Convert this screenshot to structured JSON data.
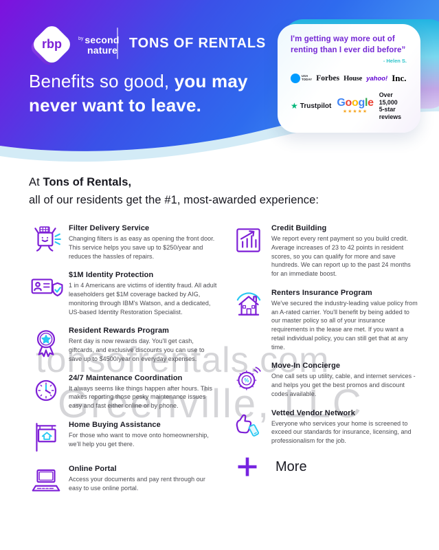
{
  "colors": {
    "accent_purple": "#7b1fd6",
    "accent_cyan": "#29c8f2",
    "header_gradient_start": "#7e11dd",
    "header_gradient_mid": "#3a51e8",
    "header_gradient_end": "#4398f2",
    "trustpilot_green": "#00b67a",
    "star_gold": "#f6a623",
    "quote_purple": "#7427d4",
    "attribution_teal": "#2fc4cb"
  },
  "header": {
    "logo": {
      "rbp": "rbp",
      "by": "by",
      "brand_word1": "second",
      "brand_word2": "nature"
    },
    "title": "TONS OF RENTALS",
    "headline": {
      "regular": "Benefits so good, ",
      "bold1": "you may",
      "bold2": "never want to leave."
    }
  },
  "testimonial_card": {
    "quote_line1": "I'm getting way more out of",
    "quote_line2": "renting than I ever did before”",
    "attribution": "- Helen S.",
    "media_logos": {
      "usa_today_line1": "USA",
      "usa_today_line2": "TODAY",
      "forbes": "Forbes",
      "house": "House",
      "yahoo": "yahoo!",
      "inc": "Inc."
    },
    "reviews": {
      "trustpilot_star": "★",
      "trustpilot": "Trustpilot",
      "google_letters": [
        {
          "c": "G",
          "color": "#4285F4"
        },
        {
          "c": "o",
          "color": "#EA4335"
        },
        {
          "c": "o",
          "color": "#FBBC05"
        },
        {
          "c": "g",
          "color": "#4285F4"
        },
        {
          "c": "l",
          "color": "#34A853"
        },
        {
          "c": "e",
          "color": "#EA4335"
        }
      ],
      "google_stars": "★★★★★",
      "count_line1": "Over 15,000",
      "count_line2": "5-star reviews"
    }
  },
  "intro": {
    "prefix": "At ",
    "brand": "Tons of Rentals",
    "comma": ",",
    "line2": "all of our residents get the #1, most-awarded experience:"
  },
  "watermark": {
    "line1": "tonsofrentals.com",
    "line2": "Greenville, LLC"
  },
  "benefits": {
    "left": [
      {
        "icon": "filter-delivery",
        "title": "Filter Delivery Service",
        "description": "Changing filters is as easy as opening the front door. This service helps you save up to $250/year and reduces the hassles of repairs."
      },
      {
        "icon": "identity-protection",
        "title": "$1M Identity Protection",
        "description": "1 in 4 Americans are victims of identity fraud. All adult leaseholders get $1M coverage backed by AIG, monitoring through IBM's Watson, and a dedicated, US-based Identity Restoration Specialist."
      },
      {
        "icon": "resident-rewards",
        "title": "Resident Rewards Program",
        "description": "Rent day is now rewards day. You'll get cash, giftcards, and exclusive discounts you can use to save up to $4500/year on everyday expenses."
      },
      {
        "icon": "maintenance",
        "title": "24/7 Maintenance Coordination",
        "description": "It always seems like things happen after hours. This makes reporting those pesky maintenance issues easy and fast either online or by phone."
      },
      {
        "icon": "home-buying",
        "title": "Home Buying Assistance",
        "description": "For those who want to move onto homeownership, we'll help you get there."
      },
      {
        "icon": "online-portal",
        "title": "Online Portal",
        "description": "Access your documents and pay rent through our easy to use online portal."
      }
    ],
    "right": [
      {
        "icon": "credit-building",
        "title": "Credit Building",
        "description": "We report every rent payment so you build credit. Average increases of 23 to 42 points in resident scores, so you can qualify for more and save hundreds. We can report up to the past 24 months for an immediate boost."
      },
      {
        "icon": "renters-insurance",
        "title": "Renters Insurance Program",
        "description": "We've secured the industry-leading value policy from an A-rated carrier. You'll benefit by being added to our master policy so all of your insurance requirements in the lease are met. If you want a retail individual policy, you can still get that at any time."
      },
      {
        "icon": "move-in-concierge",
        "title": "Move-In Concierge",
        "description": "One call sets up utility, cable, and internet services - and helps you get the best promos and discount codes available."
      },
      {
        "icon": "vetted-vendor",
        "title": "Vetted Vendor Network",
        "description": "Everyone who services your home is screened to exceed our standards for insurance, licensing, and professionalism for the job."
      }
    ],
    "more_label": "More"
  }
}
